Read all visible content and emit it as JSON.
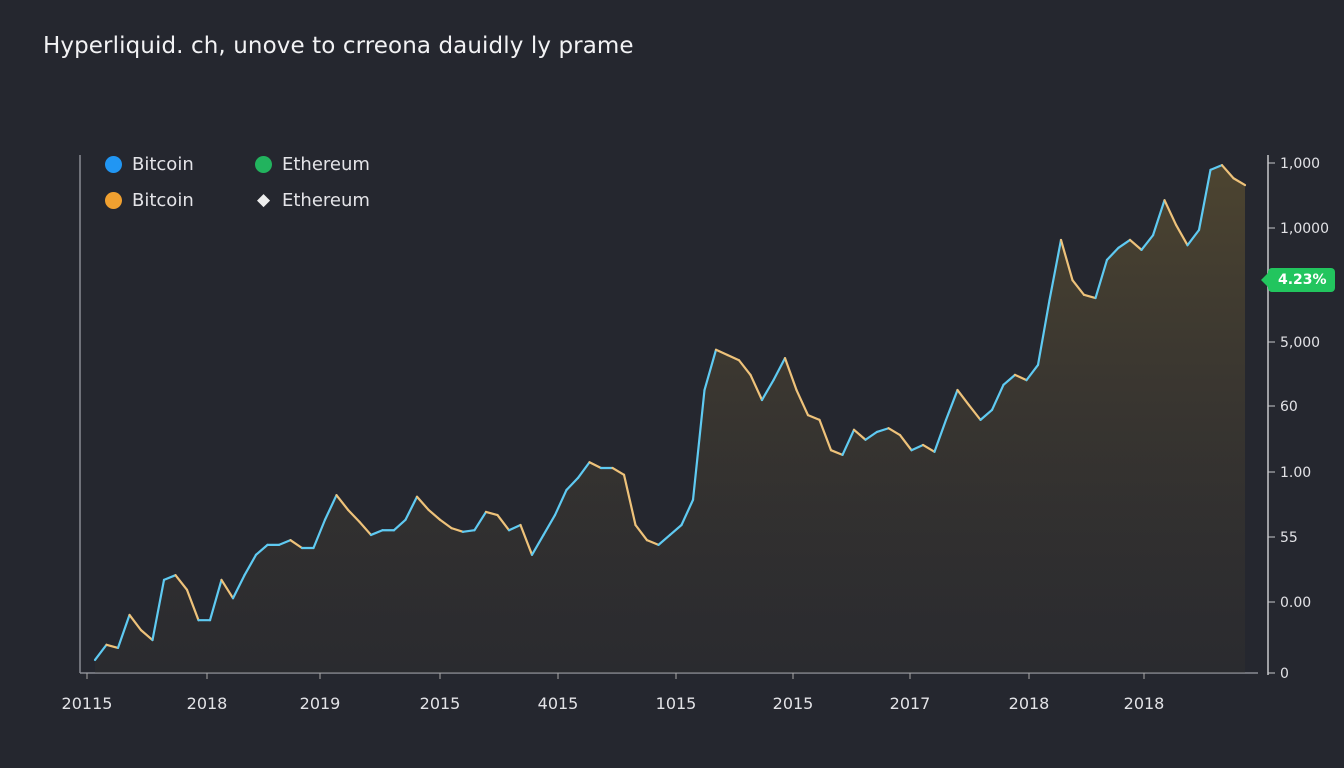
{
  "title": "Hyperliquid. ch, unove to crreona dauidly ly prame",
  "legend": [
    {
      "label": "Bitcoin",
      "icon": "bitcoin-blue-icon",
      "color": "#2196f3"
    },
    {
      "label": "Ethereum",
      "icon": "ethereum-green-icon",
      "color": "#22b35e"
    },
    {
      "label": "Bitcoin",
      "icon": "bitcoin-orange-icon",
      "color": "#f0a030"
    },
    {
      "label": "Ethereum",
      "icon": "ethereum-diamond-icon",
      "color": "#eeeeee"
    }
  ],
  "badge": {
    "label": "4.23%",
    "color": "#22c55e"
  },
  "chart_data": {
    "type": "area",
    "title": "Hyperliquid. ch, unove to crreona dauidly ly prame",
    "x_tick_labels": [
      "20115",
      "2018",
      "2019",
      "2015",
      "4015",
      "1015",
      "2015",
      "2017",
      "2018",
      "2018"
    ],
    "y_tick_labels": [
      "1,000",
      "1,0000",
      "5,000",
      "60",
      "1.00",
      "55",
      "0.00",
      "0"
    ],
    "ylim": [
      0,
      100
    ],
    "grid": false,
    "legend_position": "top-left",
    "colors": {
      "rising": "#5fcaf2",
      "falling": "#eec27a",
      "fill": "#5a4e30"
    },
    "values": [
      2.5,
      5.4,
      4.8,
      11.1,
      8.2,
      6.3,
      17.8,
      18.7,
      15.9,
      10.1,
      10.1,
      17.8,
      14.3,
      18.7,
      22.6,
      24.5,
      24.5,
      25.4,
      23.9,
      23.9,
      29.3,
      34.0,
      31.2,
      28.9,
      26.4,
      27.3,
      27.3,
      29.3,
      33.7,
      31.2,
      29.3,
      27.7,
      27.0,
      27.3,
      30.8,
      30.2,
      27.3,
      28.3,
      22.6,
      26.4,
      30.2,
      35.0,
      37.3,
      40.3,
      39.2,
      39.2,
      37.9,
      28.3,
      25.4,
      24.5,
      26.4,
      28.3,
      33.1,
      54.1,
      61.8,
      60.8,
      59.8,
      57.0,
      52.2,
      56.0,
      60.2,
      54.1,
      49.3,
      48.4,
      42.6,
      41.7,
      46.5,
      44.6,
      46.1,
      46.8,
      45.5,
      42.6,
      43.6,
      42.3,
      48.4,
      54.1,
      51.2,
      48.4,
      50.3,
      55.1,
      57.0,
      56.0,
      58.9,
      71.3,
      82.8,
      75.1,
      72.3,
      71.7,
      79.0,
      81.3,
      82.8,
      80.9,
      83.7,
      90.4,
      85.7,
      81.8,
      84.7,
      96.2,
      97.1,
      94.6,
      93.3
    ]
  }
}
